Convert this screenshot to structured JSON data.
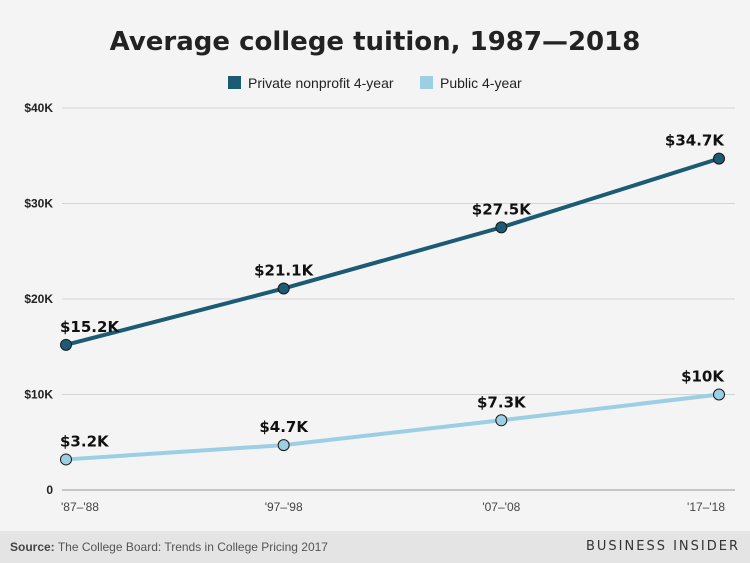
{
  "chart_data": {
    "type": "line",
    "title": "Average college tuition, 1987—2018",
    "categories": [
      "'87–'88",
      "'97–'98",
      "'07–'08",
      "'17–'18"
    ],
    "series": [
      {
        "name": "Private nonprofit 4-year",
        "color": "#1d5a73",
        "values": [
          15.2,
          21.1,
          27.5,
          34.7
        ],
        "labels": [
          "$15.2K",
          "$21.1K",
          "$27.5K",
          "$34.7K"
        ]
      },
      {
        "name": "Public 4-year",
        "color": "#9ccfe3",
        "values": [
          3.2,
          4.7,
          7.3,
          10
        ],
        "labels": [
          "$3.2K",
          "$4.7K",
          "$7.3K",
          "$10K"
        ]
      }
    ],
    "y_ticks": [
      0,
      10,
      20,
      30,
      40
    ],
    "y_tick_labels": [
      "0",
      "$10K",
      "$20K",
      "$30K",
      "$40K"
    ],
    "ylim": [
      0,
      40
    ],
    "grid": true,
    "legend": "top-center"
  },
  "footer": {
    "source_label": "Source:",
    "source_text": "The College Board: Trends in College Pricing 2017",
    "brand": "BUSINESS INSIDER"
  }
}
